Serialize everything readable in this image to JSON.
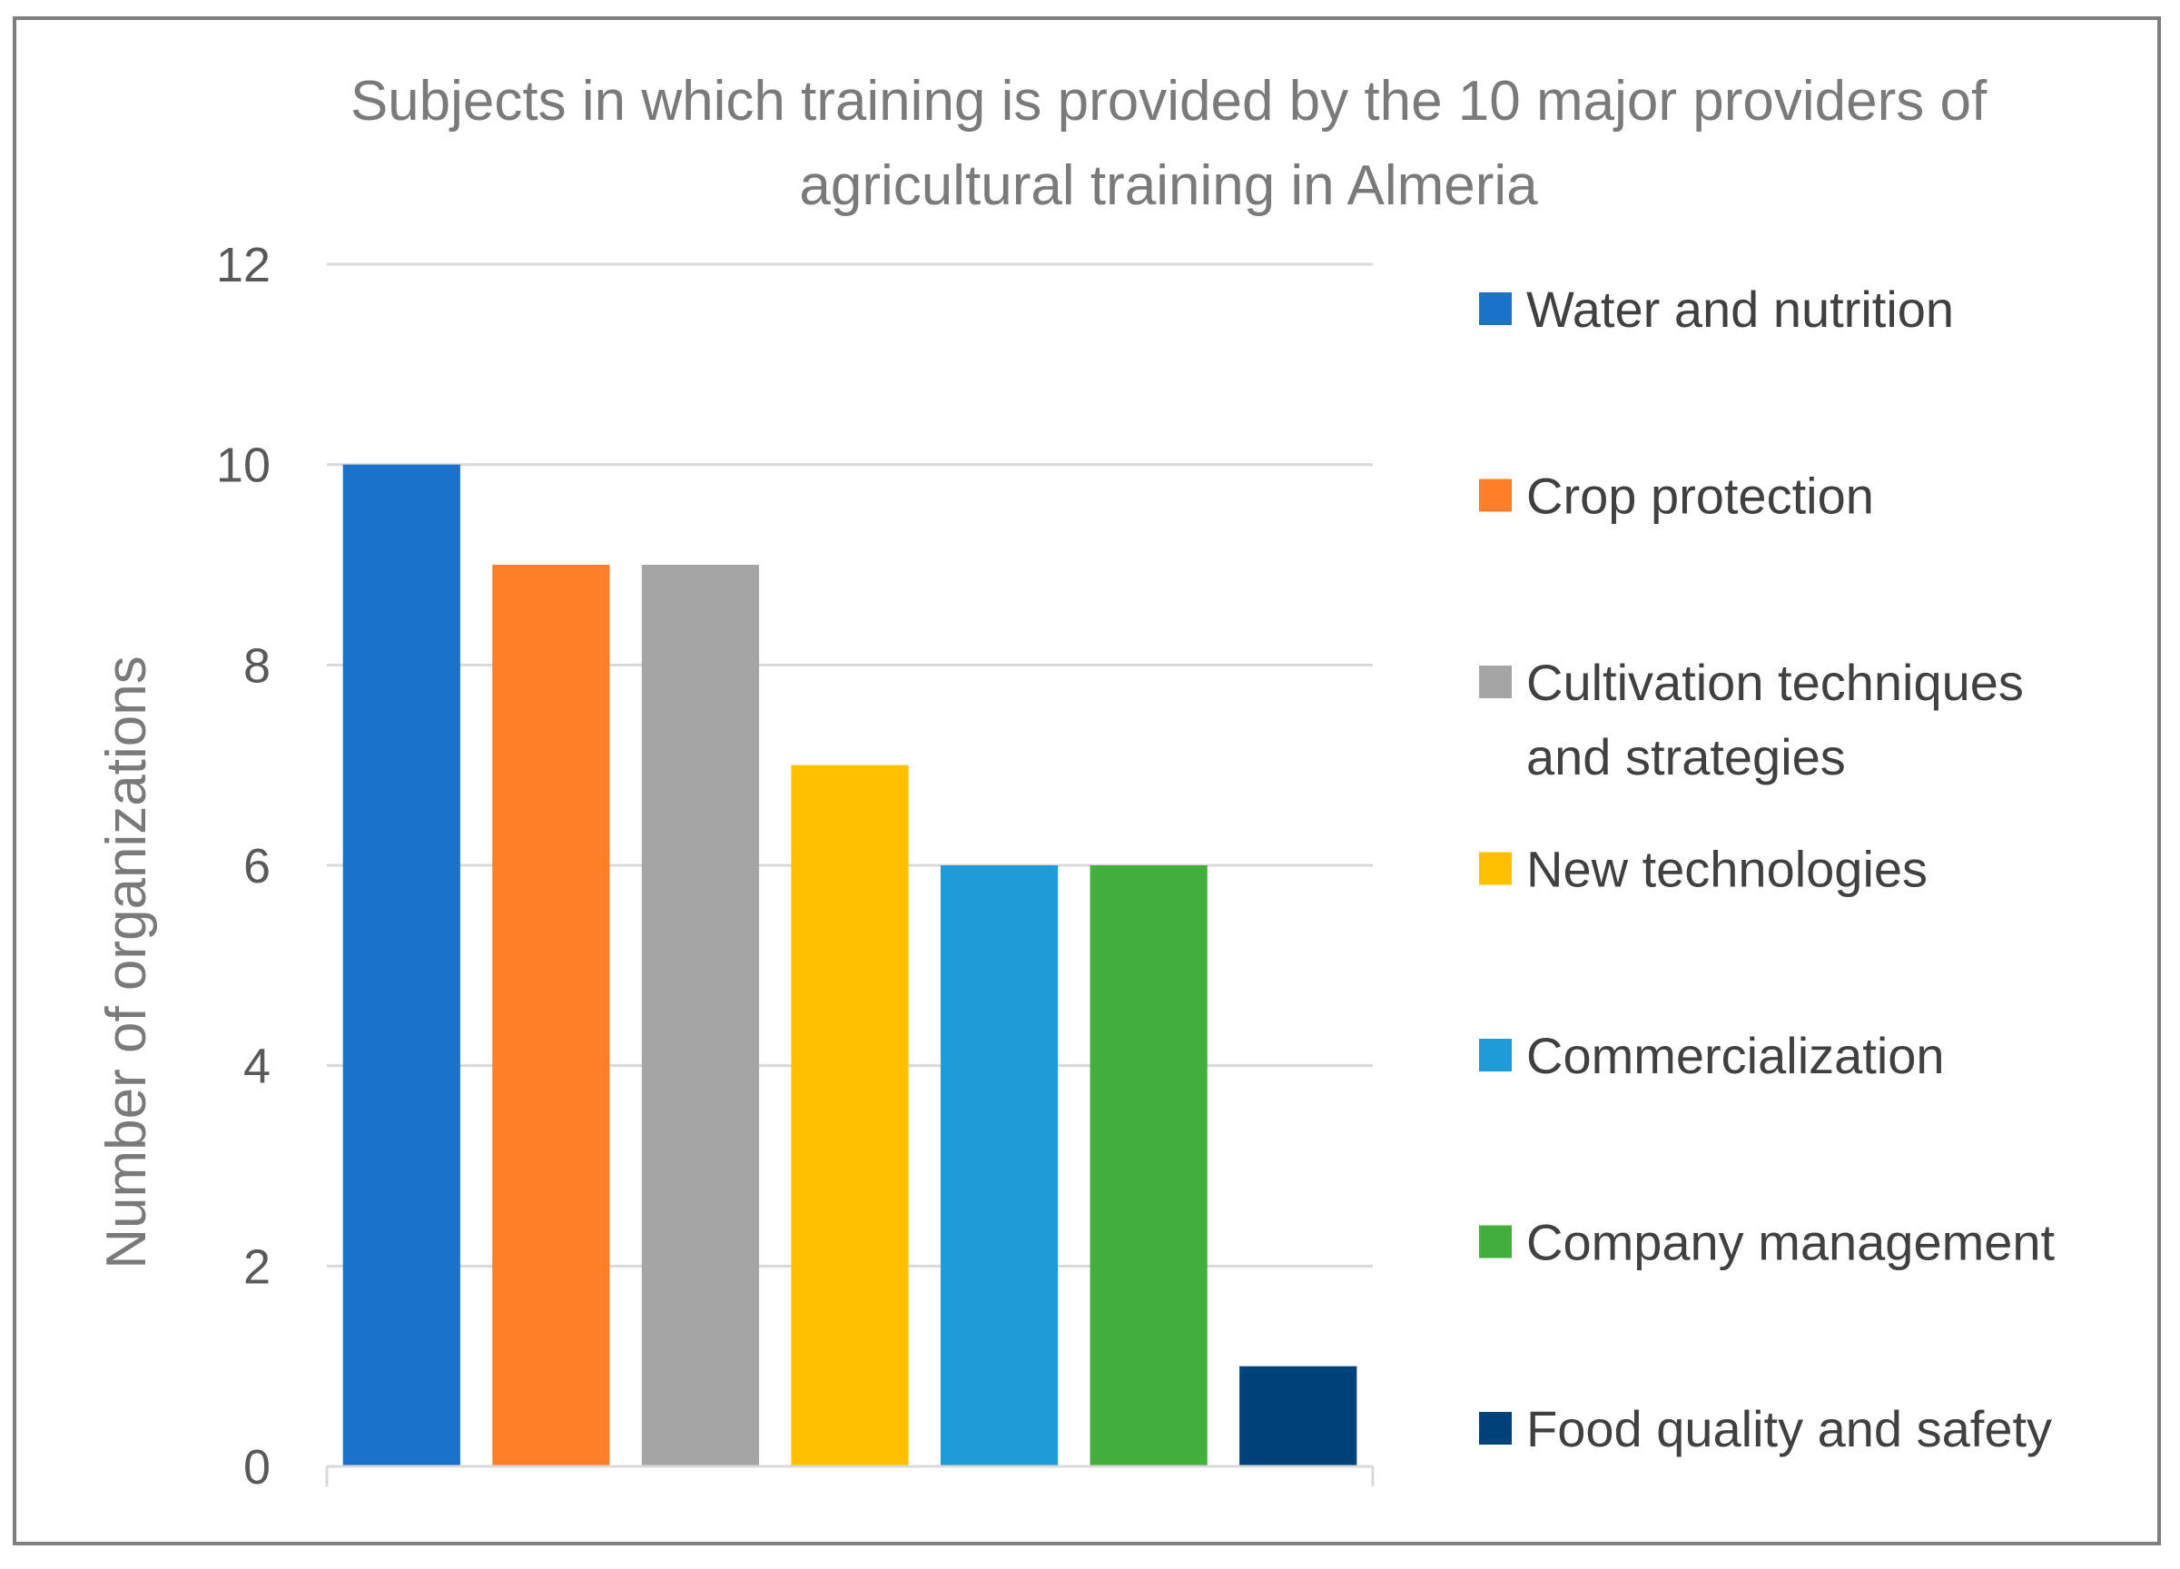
{
  "chart_data": {
    "type": "bar",
    "title": "Subjects in which training is provided by the 10 major providers of agricultural training in Almeria",
    "title_lines": [
      "Subjects in which training is provided by the 10 major providers of",
      "agricultural training in Almeria"
    ],
    "xlabel": "",
    "ylabel": "Number of organizations",
    "ylim": [
      0,
      12
    ],
    "yticks": [
      0,
      2,
      4,
      6,
      8,
      10,
      12
    ],
    "grid": true,
    "legend_position": "right",
    "categories": [
      "Water and nutrition",
      "Crop protection",
      "Cultivation techniques and strategies",
      "New technologies",
      "Commercialization",
      "Company management",
      "Food quality and safety"
    ],
    "values": [
      10,
      9,
      9,
      7,
      6,
      6,
      1
    ],
    "colors": [
      "#1a72c9",
      "#fe7f27",
      "#a5a5a5",
      "#ffc000",
      "#1f9bd8",
      "#43b03d",
      "#01427a"
    ],
    "legend": [
      {
        "lines": [
          "Water and nutrition"
        ]
      },
      {
        "lines": [
          "Crop protection"
        ]
      },
      {
        "lines": [
          "Cultivation techniques",
          "and strategies"
        ]
      },
      {
        "lines": [
          "New technologies"
        ]
      },
      {
        "lines": [
          "Commercialization"
        ]
      },
      {
        "lines": [
          "Company management"
        ]
      },
      {
        "lines": [
          "Food quality and safety"
        ]
      }
    ]
  }
}
